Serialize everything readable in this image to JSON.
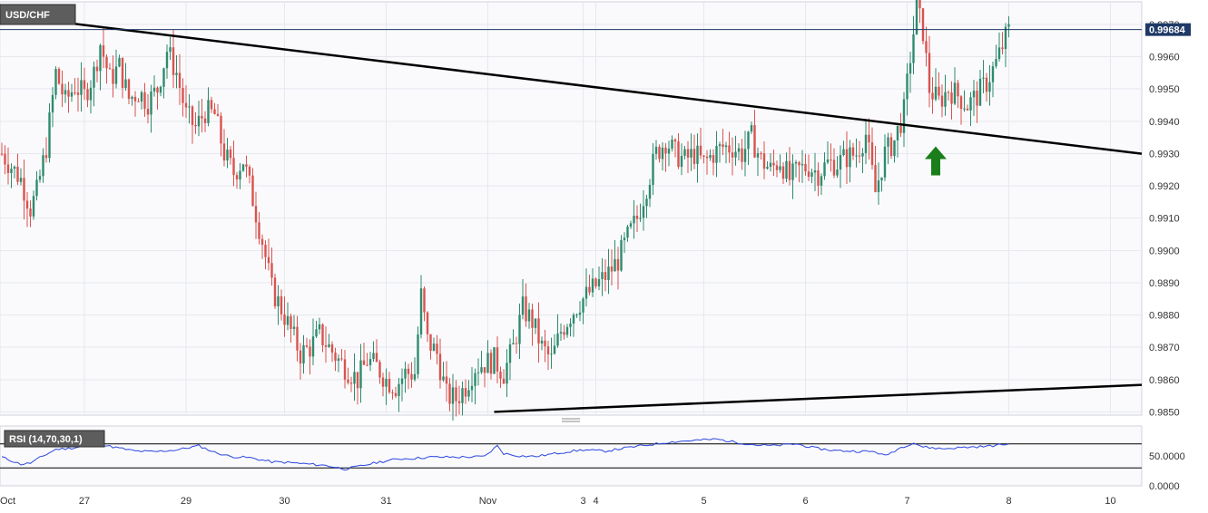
{
  "chart_data": [
    {
      "type": "candlestick",
      "title": "USD/CHF",
      "last_price": "0.99684",
      "ylim": [
        0.9849,
        0.9977
      ],
      "y_ticks": [
        "0.9850",
        "0.9860",
        "0.9870",
        "0.9880",
        "0.9890",
        "0.9900",
        "0.9910",
        "0.9920",
        "0.9930",
        "0.9940",
        "0.9950",
        "0.9960",
        "0.9970"
      ],
      "x_ticks": [
        "Oct",
        "27",
        "29",
        "30",
        "31",
        "Nov",
        "3",
        "4",
        "5",
        "6",
        "7",
        "8",
        "10"
      ],
      "grid": true,
      "colors": {
        "up": "#2e8b6e",
        "down": "#d9534f",
        "last_price_bg": "#1e3a66",
        "arrow": "#1a7f1a",
        "rsi": "#2b45e0"
      },
      "annotations": [
        "descending-resistance-trendline",
        "ascending-support-trendline",
        "up-arrow-breakout",
        "horizontal-last-price-line"
      ],
      "anchors": [
        [
          0,
          0.993
        ],
        [
          3,
          0.9926
        ],
        [
          6,
          0.9922
        ],
        [
          9,
          0.9913
        ],
        [
          11,
          0.9918
        ],
        [
          14,
          0.9932
        ],
        [
          17,
          0.9955
        ],
        [
          20,
          0.9946
        ],
        [
          23,
          0.9951
        ],
        [
          26,
          0.9948
        ],
        [
          29,
          0.9955
        ],
        [
          31,
          0.9964
        ],
        [
          34,
          0.9953
        ],
        [
          37,
          0.9957
        ],
        [
          40,
          0.9947
        ],
        [
          43,
          0.9949
        ],
        [
          46,
          0.9946
        ],
        [
          49,
          0.995
        ],
        [
          52,
          0.9962
        ],
        [
          55,
          0.9955
        ],
        [
          58,
          0.9942
        ],
        [
          61,
          0.9938
        ],
        [
          64,
          0.9943
        ],
        [
          67,
          0.9942
        ],
        [
          70,
          0.993
        ],
        [
          73,
          0.9924
        ],
        [
          76,
          0.9928
        ],
        [
          79,
          0.9916
        ],
        [
          82,
          0.9903
        ],
        [
          85,
          0.9888
        ],
        [
          88,
          0.9882
        ],
        [
          91,
          0.9875
        ],
        [
          94,
          0.9868
        ],
        [
          97,
          0.987
        ],
        [
          100,
          0.9874
        ],
        [
          103,
          0.987
        ],
        [
          106,
          0.9866
        ],
        [
          109,
          0.9863
        ],
        [
          112,
          0.986
        ],
        [
          115,
          0.9866
        ],
        [
          118,
          0.9864
        ],
        [
          121,
          0.986
        ],
        [
          124,
          0.9858
        ],
        [
          127,
          0.9862
        ],
        [
          130,
          0.9862
        ],
        [
          132,
          0.9886
        ],
        [
          134,
          0.9872
        ],
        [
          137,
          0.9868
        ],
        [
          140,
          0.9855
        ],
        [
          143,
          0.9854
        ],
        [
          146,
          0.9858
        ],
        [
          149,
          0.9864
        ],
        [
          152,
          0.9865
        ],
        [
          155,
          0.9866
        ],
        [
          158,
          0.9862
        ],
        [
          161,
          0.987
        ],
        [
          164,
          0.9882
        ],
        [
          167,
          0.9878
        ],
        [
          170,
          0.987
        ],
        [
          173,
          0.9866
        ],
        [
          176,
          0.9875
        ],
        [
          179,
          0.988
        ],
        [
          182,
          0.9884
        ],
        [
          185,
          0.9887
        ],
        [
          188,
          0.989
        ],
        [
          191,
          0.9893
        ],
        [
          194,
          0.9897
        ],
        [
          197,
          0.9904
        ],
        [
          200,
          0.991
        ],
        [
          203,
          0.992
        ],
        [
          206,
          0.993
        ],
        [
          209,
          0.9934
        ],
        [
          212,
          0.993
        ],
        [
          215,
          0.9928
        ],
        [
          218,
          0.993
        ],
        [
          221,
          0.9927
        ],
        [
          224,
          0.993
        ],
        [
          227,
          0.9932
        ],
        [
          230,
          0.9932
        ],
        [
          233,
          0.993
        ],
        [
          236,
          0.9935
        ],
        [
          239,
          0.9928
        ],
        [
          242,
          0.9925
        ],
        [
          245,
          0.9928
        ],
        [
          248,
          0.9922
        ],
        [
          251,
          0.9925
        ],
        [
          254,
          0.9926
        ],
        [
          257,
          0.9924
        ],
        [
          260,
          0.9927
        ],
        [
          263,
          0.9927
        ],
        [
          266,
          0.9929
        ],
        [
          269,
          0.993
        ],
        [
          272,
          0.9936
        ],
        [
          275,
          0.9918
        ],
        [
          278,
          0.993
        ],
        [
          281,
          0.9934
        ],
        [
          284,
          0.9943
        ],
        [
          286,
          0.996
        ],
        [
          288,
          0.9975
        ],
        [
          290,
          0.9968
        ],
        [
          292,
          0.995
        ],
        [
          295,
          0.9946
        ],
        [
          298,
          0.995
        ],
        [
          301,
          0.9948
        ],
        [
          304,
          0.9945
        ],
        [
          307,
          0.9948
        ],
        [
          310,
          0.9952
        ],
        [
          313,
          0.9958
        ],
        [
          316,
          0.9966
        ],
        [
          317,
          0.9968
        ]
      ],
      "support_line": [
        [
          155,
          0.985
        ],
        [
          350,
          0.9858
        ]
      ],
      "resistance_line": [
        [
          0,
          0.9973
        ],
        [
          350,
          0.9931
        ]
      ],
      "arrow_at": [
        294,
        0.993
      ]
    },
    {
      "type": "line",
      "title": "RSI (14,70,30,1)",
      "ylim": [
        0,
        100
      ],
      "y_ticks": [
        "50.0000",
        "0.0000"
      ],
      "levels": [
        70,
        30
      ],
      "anchors": [
        [
          0,
          48
        ],
        [
          3,
          42
        ],
        [
          6,
          36
        ],
        [
          9,
          38
        ],
        [
          12,
          47
        ],
        [
          17,
          61
        ],
        [
          22,
          63
        ],
        [
          30,
          70
        ],
        [
          37,
          63
        ],
        [
          42,
          58
        ],
        [
          48,
          57
        ],
        [
          55,
          60
        ],
        [
          62,
          67
        ],
        [
          67,
          56
        ],
        [
          72,
          49
        ],
        [
          78,
          47
        ],
        [
          85,
          40
        ],
        [
          90,
          39
        ],
        [
          95,
          37
        ],
        [
          102,
          34
        ],
        [
          108,
          28
        ],
        [
          113,
          33
        ],
        [
          118,
          39
        ],
        [
          125,
          45
        ],
        [
          130,
          46
        ],
        [
          135,
          48
        ],
        [
          140,
          48
        ],
        [
          145,
          48
        ],
        [
          152,
          49
        ],
        [
          156,
          67
        ],
        [
          158,
          54
        ],
        [
          163,
          50
        ],
        [
          168,
          49
        ],
        [
          173,
          53
        ],
        [
          178,
          57
        ],
        [
          183,
          60
        ],
        [
          190,
          58
        ],
        [
          196,
          63
        ],
        [
          203,
          68
        ],
        [
          210,
          73
        ],
        [
          218,
          76
        ],
        [
          225,
          78
        ],
        [
          232,
          72
        ],
        [
          238,
          68
        ],
        [
          243,
          67
        ],
        [
          250,
          70
        ],
        [
          256,
          63
        ],
        [
          262,
          59
        ],
        [
          268,
          58
        ],
        [
          275,
          57
        ],
        [
          278,
          50
        ],
        [
          283,
          64
        ],
        [
          287,
          72
        ],
        [
          290,
          65
        ],
        [
          296,
          62
        ],
        [
          302,
          64
        ],
        [
          310,
          66
        ],
        [
          317,
          70
        ]
      ]
    }
  ]
}
